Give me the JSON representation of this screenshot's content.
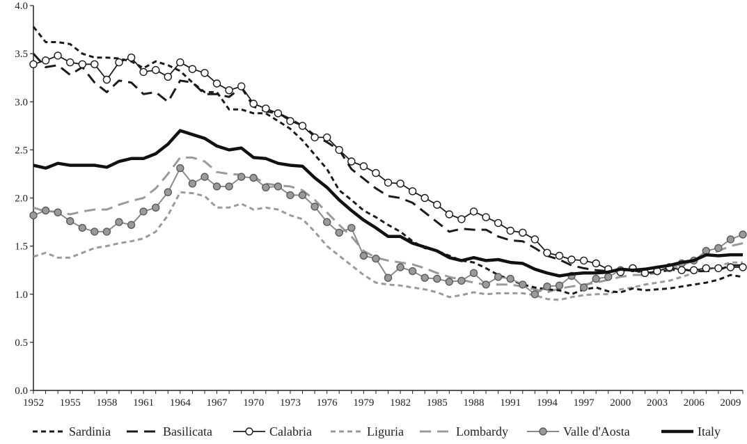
{
  "chart_data": {
    "type": "line",
    "title": "",
    "xlabel": "",
    "ylabel": "",
    "xlim": [
      1952,
      2010
    ],
    "ylim": [
      0,
      4
    ],
    "x_ticks": [
      "1952",
      "1955",
      "1958",
      "1961",
      "1964",
      "1967",
      "1970",
      "1973",
      "1976",
      "1979",
      "1982",
      "1985",
      "1988",
      "1991",
      "1994",
      "1997",
      "2000",
      "2003",
      "2006",
      "2009"
    ],
    "y_ticks": [
      "0.0",
      "0.5",
      "1.0",
      "1.5",
      "2.0",
      "2.5",
      "3.0",
      "3.5",
      "4.0"
    ],
    "legend_position": "bottom",
    "x": [
      1952,
      1953,
      1954,
      1955,
      1956,
      1957,
      1958,
      1959,
      1960,
      1961,
      1962,
      1963,
      1964,
      1965,
      1966,
      1967,
      1968,
      1969,
      1970,
      1971,
      1972,
      1973,
      1974,
      1975,
      1976,
      1977,
      1978,
      1979,
      1980,
      1981,
      1982,
      1983,
      1984,
      1985,
      1986,
      1987,
      1988,
      1989,
      1990,
      1991,
      1992,
      1993,
      1994,
      1995,
      1996,
      1997,
      1998,
      1999,
      2000,
      2001,
      2002,
      2003,
      2004,
      2005,
      2006,
      2007,
      2008,
      2009,
      2010
    ],
    "series": [
      {
        "name": "Sardinia",
        "color": "#1a1a1a",
        "style": "short-dash",
        "width": 3,
        "marker": "none",
        "values": [
          3.78,
          3.62,
          3.62,
          3.6,
          3.5,
          3.46,
          3.46,
          3.45,
          3.42,
          3.35,
          3.42,
          3.38,
          3.32,
          3.2,
          3.1,
          3.1,
          2.92,
          2.92,
          2.88,
          2.88,
          2.8,
          2.72,
          2.6,
          2.45,
          2.3,
          2.08,
          1.98,
          1.87,
          1.8,
          1.72,
          1.65,
          1.55,
          1.48,
          1.45,
          1.4,
          1.35,
          1.33,
          1.27,
          1.2,
          1.15,
          1.1,
          1.07,
          1.05,
          1.04,
          1.0,
          1.05,
          1.07,
          1.03,
          1.02,
          1.06,
          1.04,
          1.05,
          1.06,
          1.08,
          1.1,
          1.12,
          1.15,
          1.2,
          1.18
        ]
      },
      {
        "name": "Basilicata",
        "color": "#1a1a1a",
        "style": "long-dash",
        "width": 3,
        "marker": "none",
        "values": [
          3.5,
          3.36,
          3.38,
          3.28,
          3.36,
          3.2,
          3.1,
          3.22,
          3.2,
          3.08,
          3.1,
          3.0,
          3.22,
          3.2,
          3.08,
          3.08,
          3.05,
          3.15,
          2.95,
          2.9,
          2.88,
          2.82,
          2.75,
          2.65,
          2.58,
          2.5,
          2.3,
          2.2,
          2.1,
          2.02,
          2.0,
          1.95,
          1.85,
          1.75,
          1.65,
          1.68,
          1.67,
          1.67,
          1.6,
          1.56,
          1.55,
          1.48,
          1.4,
          1.36,
          1.3,
          1.27,
          1.25,
          1.24,
          1.25,
          1.25,
          1.22,
          1.23,
          1.25,
          1.26,
          1.24,
          1.24,
          1.25,
          1.3,
          1.3
        ]
      },
      {
        "name": "Calabria",
        "color": "#1a1a1a",
        "style": "solid",
        "width": 1.8,
        "marker": "open-circle",
        "values": [
          3.39,
          3.43,
          3.48,
          3.41,
          3.39,
          3.39,
          3.23,
          3.41,
          3.46,
          3.31,
          3.33,
          3.26,
          3.41,
          3.34,
          3.3,
          3.19,
          3.12,
          3.16,
          2.98,
          2.93,
          2.88,
          2.8,
          2.75,
          2.63,
          2.63,
          2.5,
          2.38,
          2.33,
          2.26,
          2.16,
          2.15,
          2.07,
          2.0,
          1.93,
          1.83,
          1.78,
          1.86,
          1.8,
          1.74,
          1.66,
          1.64,
          1.57,
          1.43,
          1.4,
          1.36,
          1.35,
          1.32,
          1.26,
          1.23,
          1.27,
          1.22,
          1.24,
          1.28,
          1.25,
          1.25,
          1.27,
          1.27,
          1.28,
          1.28
        ]
      },
      {
        "name": "Liguria",
        "color": "#9a9a9a",
        "style": "short-dash",
        "width": 3,
        "marker": "none",
        "values": [
          1.39,
          1.43,
          1.38,
          1.38,
          1.43,
          1.48,
          1.5,
          1.53,
          1.55,
          1.58,
          1.65,
          1.82,
          2.06,
          2.05,
          2.02,
          1.9,
          1.9,
          1.94,
          1.88,
          1.9,
          1.88,
          1.82,
          1.78,
          1.65,
          1.5,
          1.4,
          1.3,
          1.2,
          1.12,
          1.1,
          1.09,
          1.07,
          1.05,
          1.02,
          0.97,
          0.99,
          1.02,
          1.0,
          1.01,
          1.01,
          1.01,
          0.99,
          0.95,
          0.94,
          0.97,
          0.99,
          1.0,
          1.0,
          1.05,
          1.07,
          1.1,
          1.12,
          1.14,
          1.18,
          1.22,
          1.25,
          1.29,
          1.33,
          1.33
        ]
      },
      {
        "name": "Lombardy",
        "color": "#9a9a9a",
        "style": "long-dash",
        "width": 3,
        "marker": "none",
        "values": [
          1.9,
          1.86,
          1.86,
          1.83,
          1.86,
          1.88,
          1.88,
          1.93,
          1.97,
          2.0,
          2.1,
          2.25,
          2.42,
          2.42,
          2.38,
          2.27,
          2.25,
          2.24,
          2.22,
          2.15,
          2.13,
          2.12,
          2.08,
          1.98,
          1.85,
          1.72,
          1.6,
          1.45,
          1.38,
          1.35,
          1.33,
          1.31,
          1.27,
          1.22,
          1.18,
          1.15,
          1.12,
          1.1,
          1.1,
          1.1,
          1.08,
          1.05,
          1.02,
          1.06,
          1.08,
          1.1,
          1.12,
          1.15,
          1.18,
          1.2,
          1.2,
          1.22,
          1.25,
          1.3,
          1.35,
          1.4,
          1.45,
          1.5,
          1.53
        ]
      },
      {
        "name": "Valle d'Aosta",
        "color": "#8a8a8a",
        "style": "solid",
        "width": 2,
        "marker": "filled-circle",
        "values": [
          1.82,
          1.87,
          1.85,
          1.76,
          1.69,
          1.65,
          1.65,
          1.75,
          1.72,
          1.86,
          1.9,
          2.06,
          2.31,
          2.15,
          2.22,
          2.12,
          2.12,
          2.22,
          2.21,
          2.11,
          2.12,
          2.03,
          2.03,
          1.91,
          1.75,
          1.64,
          1.69,
          1.4,
          1.37,
          1.17,
          1.28,
          1.24,
          1.17,
          1.16,
          1.13,
          1.14,
          1.22,
          1.1,
          1.18,
          1.16,
          1.1,
          1.0,
          1.08,
          1.09,
          1.19,
          1.07,
          1.16,
          1.18,
          1.25,
          1.27,
          1.22,
          1.24,
          1.27,
          1.32,
          1.35,
          1.45,
          1.48,
          1.57,
          1.62
        ]
      },
      {
        "name": "Italy",
        "color": "#111111",
        "style": "solid",
        "width": 4.5,
        "marker": "none",
        "values": [
          2.34,
          2.31,
          2.36,
          2.34,
          2.34,
          2.34,
          2.32,
          2.38,
          2.41,
          2.41,
          2.46,
          2.56,
          2.7,
          2.66,
          2.62,
          2.54,
          2.5,
          2.52,
          2.42,
          2.41,
          2.36,
          2.34,
          2.33,
          2.21,
          2.11,
          1.98,
          1.87,
          1.77,
          1.69,
          1.6,
          1.6,
          1.53,
          1.49,
          1.45,
          1.38,
          1.35,
          1.38,
          1.35,
          1.36,
          1.33,
          1.32,
          1.26,
          1.22,
          1.19,
          1.21,
          1.22,
          1.22,
          1.23,
          1.26,
          1.25,
          1.26,
          1.28,
          1.3,
          1.33,
          1.35,
          1.41,
          1.4,
          1.41,
          1.41
        ]
      }
    ]
  }
}
